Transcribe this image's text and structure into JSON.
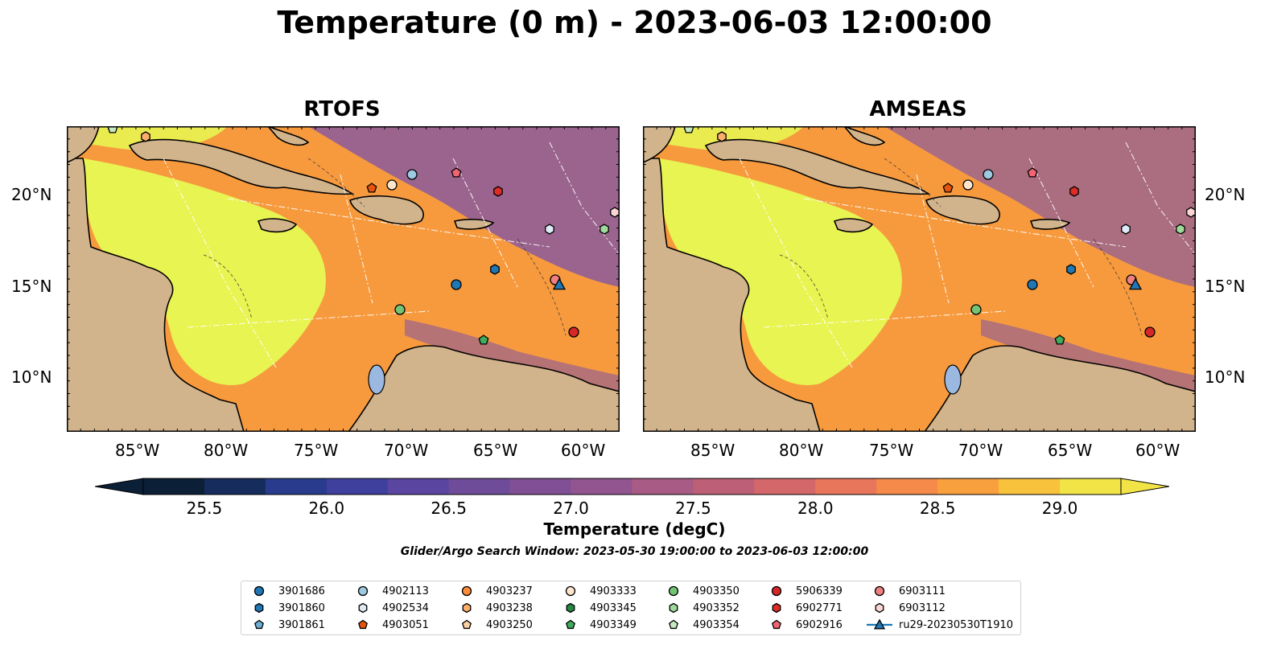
{
  "title": "Temperature (0 m) - 2023-06-03 12:00:00",
  "panels": [
    {
      "title": "RTOFS"
    },
    {
      "title": "AMSEAS"
    }
  ],
  "axes": {
    "lat_labels": [
      "20°N",
      "15°N",
      "10°N"
    ],
    "lon_labels": [
      "85°W",
      "80°W",
      "75°W",
      "70°W",
      "65°W",
      "60°W"
    ]
  },
  "colorbar": {
    "label": "Temperature (degC)",
    "ticks": [
      "25.5",
      "26.0",
      "26.5",
      "27.0",
      "27.5",
      "28.0",
      "28.5",
      "29.0"
    ],
    "range": [
      25.25,
      29.25
    ],
    "extend": "both",
    "colors": [
      "#0b1f36",
      "#152c5c",
      "#283b8c",
      "#3f3f9e",
      "#5a45a0",
      "#6e4c9a",
      "#814f95",
      "#935590",
      "#a85b85",
      "#bd5f76",
      "#d4676a",
      "#e8765a",
      "#f68a4a",
      "#f9a03e",
      "#f8c23c",
      "#f2e346"
    ]
  },
  "search_window": "Glider/Argo Search Window: 2023-05-30 19:00:00 to 2023-06-03 12:00:00",
  "legend": {
    "items": [
      {
        "label": "3901686",
        "marker": "circle",
        "color": "#1f77b4"
      },
      {
        "label": "3901860",
        "marker": "hexagon",
        "color": "#1f77b4"
      },
      {
        "label": "3901861",
        "marker": "pentagon",
        "color": "#6baed6"
      },
      {
        "label": "4902113",
        "marker": "circle",
        "color": "#9ecae1"
      },
      {
        "label": "4902534",
        "marker": "hexagon",
        "color": "#deebf7"
      },
      {
        "label": "4903051",
        "marker": "pentagon",
        "color": "#e6550d"
      },
      {
        "label": "4903237",
        "marker": "circle",
        "color": "#fd8d3c"
      },
      {
        "label": "4903238",
        "marker": "hexagon",
        "color": "#fdae6b"
      },
      {
        "label": "4903250",
        "marker": "pentagon",
        "color": "#fdd0a2"
      },
      {
        "label": "4903333",
        "marker": "circle",
        "color": "#fee6ce"
      },
      {
        "label": "4903345",
        "marker": "hexagon",
        "color": "#238b45"
      },
      {
        "label": "4903349",
        "marker": "pentagon",
        "color": "#41ab5d"
      },
      {
        "label": "4903350",
        "marker": "circle",
        "color": "#74c476"
      },
      {
        "label": "4903352",
        "marker": "hexagon",
        "color": "#a1d99b"
      },
      {
        "label": "4903354",
        "marker": "pentagon",
        "color": "#c7e9c0"
      },
      {
        "label": "5906339",
        "marker": "circle",
        "color": "#d62728"
      },
      {
        "label": "6902771",
        "marker": "hexagon",
        "color": "#de2d26"
      },
      {
        "label": "6902916",
        "marker": "pentagon",
        "color": "#f06571"
      },
      {
        "label": "6903111",
        "marker": "circle",
        "color": "#f08080"
      },
      {
        "label": "6903112",
        "marker": "hexagon",
        "color": "#fcd5d5"
      },
      {
        "label": "ru29-20230530T1910",
        "marker": "triangle-line",
        "color": "#1f77b4"
      }
    ]
  },
  "map_colors": {
    "land": "#d2b48c",
    "water_fill": "#e8f451",
    "warm": "#f79a3e",
    "purple": "#8a5a9c",
    "river": "#9bb7d4",
    "ocean_mask": "#9ab8e0"
  }
}
